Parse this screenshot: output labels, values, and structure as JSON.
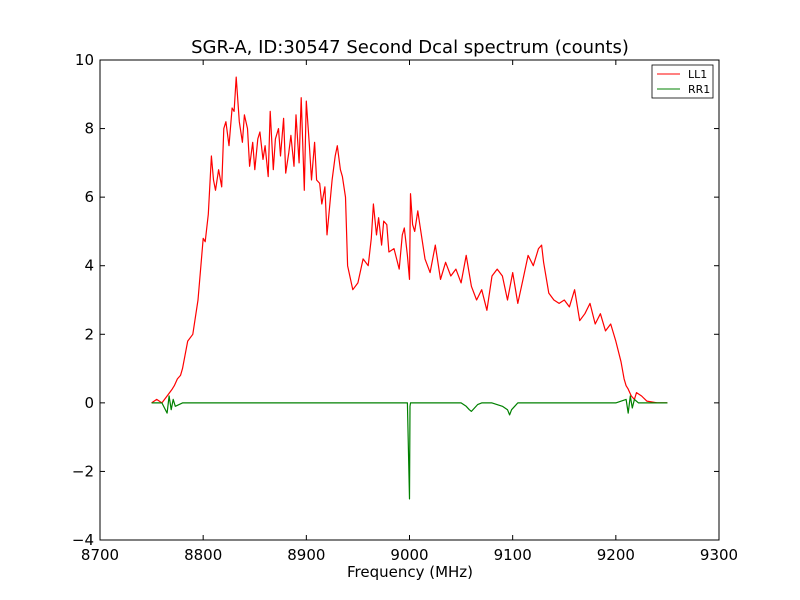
{
  "chart_data": {
    "type": "line",
    "title": "SGR-A, ID:30547 Second Dcal spectrum (counts)",
    "xlabel": "Frequency (MHz)",
    "ylabel": "",
    "xlim": [
      8700,
      9300
    ],
    "ylim": [
      -4,
      10
    ],
    "xticks": [
      "8700",
      "8800",
      "8900",
      "9000",
      "9100",
      "9200",
      "9300"
    ],
    "yticks": [
      "10",
      "8",
      "6",
      "4",
      "2",
      "0",
      "−2",
      "−4"
    ],
    "grid": false,
    "legend": {
      "placement": "top-right",
      "entries": [
        "LL1",
        "RR1"
      ]
    },
    "series": [
      {
        "name": "LL1",
        "color": "#ff0000",
        "x": [
          8750,
          8755,
          8760,
          8765,
          8770,
          8772,
          8775,
          8778,
          8780,
          8785,
          8790,
          8795,
          8800,
          8802,
          8805,
          8808,
          8810,
          8812,
          8815,
          8818,
          8820,
          8822,
          8825,
          8828,
          8830,
          8832,
          8835,
          8838,
          8840,
          8843,
          8845,
          8848,
          8850,
          8853,
          8855,
          8858,
          8860,
          8863,
          8865,
          8868,
          8870,
          8873,
          8875,
          8878,
          8880,
          8883,
          8885,
          8888,
          8890,
          8893,
          8895,
          8898,
          8900,
          8903,
          8905,
          8908,
          8910,
          8913,
          8915,
          8918,
          8920,
          8925,
          8928,
          8930,
          8933,
          8935,
          8938,
          8940,
          8945,
          8950,
          8955,
          8960,
          8963,
          8965,
          8968,
          8970,
          8973,
          8975,
          8978,
          8980,
          8985,
          8990,
          8993,
          8995,
          8998,
          9000,
          9001,
          9003,
          9005,
          9008,
          9010,
          9015,
          9020,
          9025,
          9030,
          9035,
          9040,
          9045,
          9050,
          9055,
          9060,
          9065,
          9070,
          9075,
          9080,
          9085,
          9090,
          9095,
          9100,
          9105,
          9110,
          9115,
          9120,
          9125,
          9128,
          9130,
          9135,
          9140,
          9145,
          9150,
          9155,
          9160,
          9165,
          9170,
          9175,
          9180,
          9185,
          9190,
          9195,
          9200,
          9205,
          9208,
          9210,
          9212,
          9215,
          9218,
          9220,
          9225,
          9230,
          9240,
          9250
        ],
        "y": [
          0,
          0.1,
          0,
          0.2,
          0.4,
          0.5,
          0.7,
          0.8,
          1.0,
          1.8,
          2.0,
          3.0,
          4.8,
          4.7,
          5.5,
          7.2,
          6.5,
          6.2,
          6.8,
          6.3,
          8.0,
          8.2,
          7.5,
          8.6,
          8.5,
          9.5,
          8.2,
          7.6,
          8.4,
          8.0,
          6.9,
          7.6,
          6.8,
          7.7,
          7.9,
          7.1,
          7.5,
          6.6,
          8.5,
          6.8,
          7.7,
          8.0,
          7.2,
          8.3,
          6.7,
          7.3,
          7.8,
          6.9,
          8.4,
          7.0,
          8.9,
          6.2,
          8.8,
          7.5,
          6.5,
          7.6,
          6.5,
          6.4,
          5.8,
          6.3,
          4.9,
          6.5,
          7.2,
          7.5,
          6.8,
          6.6,
          6.0,
          4.0,
          3.3,
          3.5,
          4.2,
          4.0,
          4.8,
          5.8,
          4.9,
          5.4,
          4.6,
          5.3,
          5.2,
          4.4,
          4.5,
          3.9,
          4.9,
          5.1,
          4.3,
          3.6,
          6.1,
          5.2,
          5.0,
          5.6,
          5.2,
          4.2,
          3.8,
          4.6,
          3.6,
          4.1,
          3.7,
          3.9,
          3.5,
          4.3,
          3.4,
          3.0,
          3.3,
          2.7,
          3.7,
          3.9,
          3.7,
          3.0,
          3.8,
          2.9,
          3.6,
          4.3,
          4.0,
          4.5,
          4.6,
          4.1,
          3.2,
          3.0,
          2.9,
          3.0,
          2.8,
          3.3,
          2.4,
          2.6,
          2.9,
          2.3,
          2.6,
          2.1,
          2.3,
          1.8,
          1.2,
          0.7,
          0.5,
          0.4,
          0.2,
          0.1,
          0.3,
          0.2,
          0.05,
          0,
          0
        ]
      },
      {
        "name": "RR1",
        "color": "#008000",
        "x": [
          8750,
          8760,
          8765,
          8767,
          8769,
          8771,
          8773,
          8780,
          8800,
          8850,
          8900,
          8950,
          8998,
          9000,
          9000.5,
          9001,
          9002,
          9050,
          9055,
          9058,
          9060,
          9063,
          9066,
          9070,
          9080,
          9090,
          9095,
          9097,
          9099,
          9102,
          9105,
          9110,
          9150,
          9200,
          9210,
          9212,
          9214,
          9216,
          9218,
          9222,
          9230,
          9250
        ],
        "y": [
          0,
          0,
          -0.3,
          0.2,
          -0.2,
          0.1,
          -0.1,
          0,
          0,
          0,
          0,
          0,
          0,
          -2.8,
          -0.1,
          0,
          0,
          0,
          -0.1,
          -0.2,
          -0.25,
          -0.15,
          -0.05,
          0,
          0,
          -0.1,
          -0.2,
          -0.35,
          -0.2,
          -0.1,
          0,
          0,
          0,
          0,
          0.1,
          -0.3,
          0.2,
          -0.15,
          0.1,
          0,
          0,
          0
        ]
      }
    ]
  }
}
